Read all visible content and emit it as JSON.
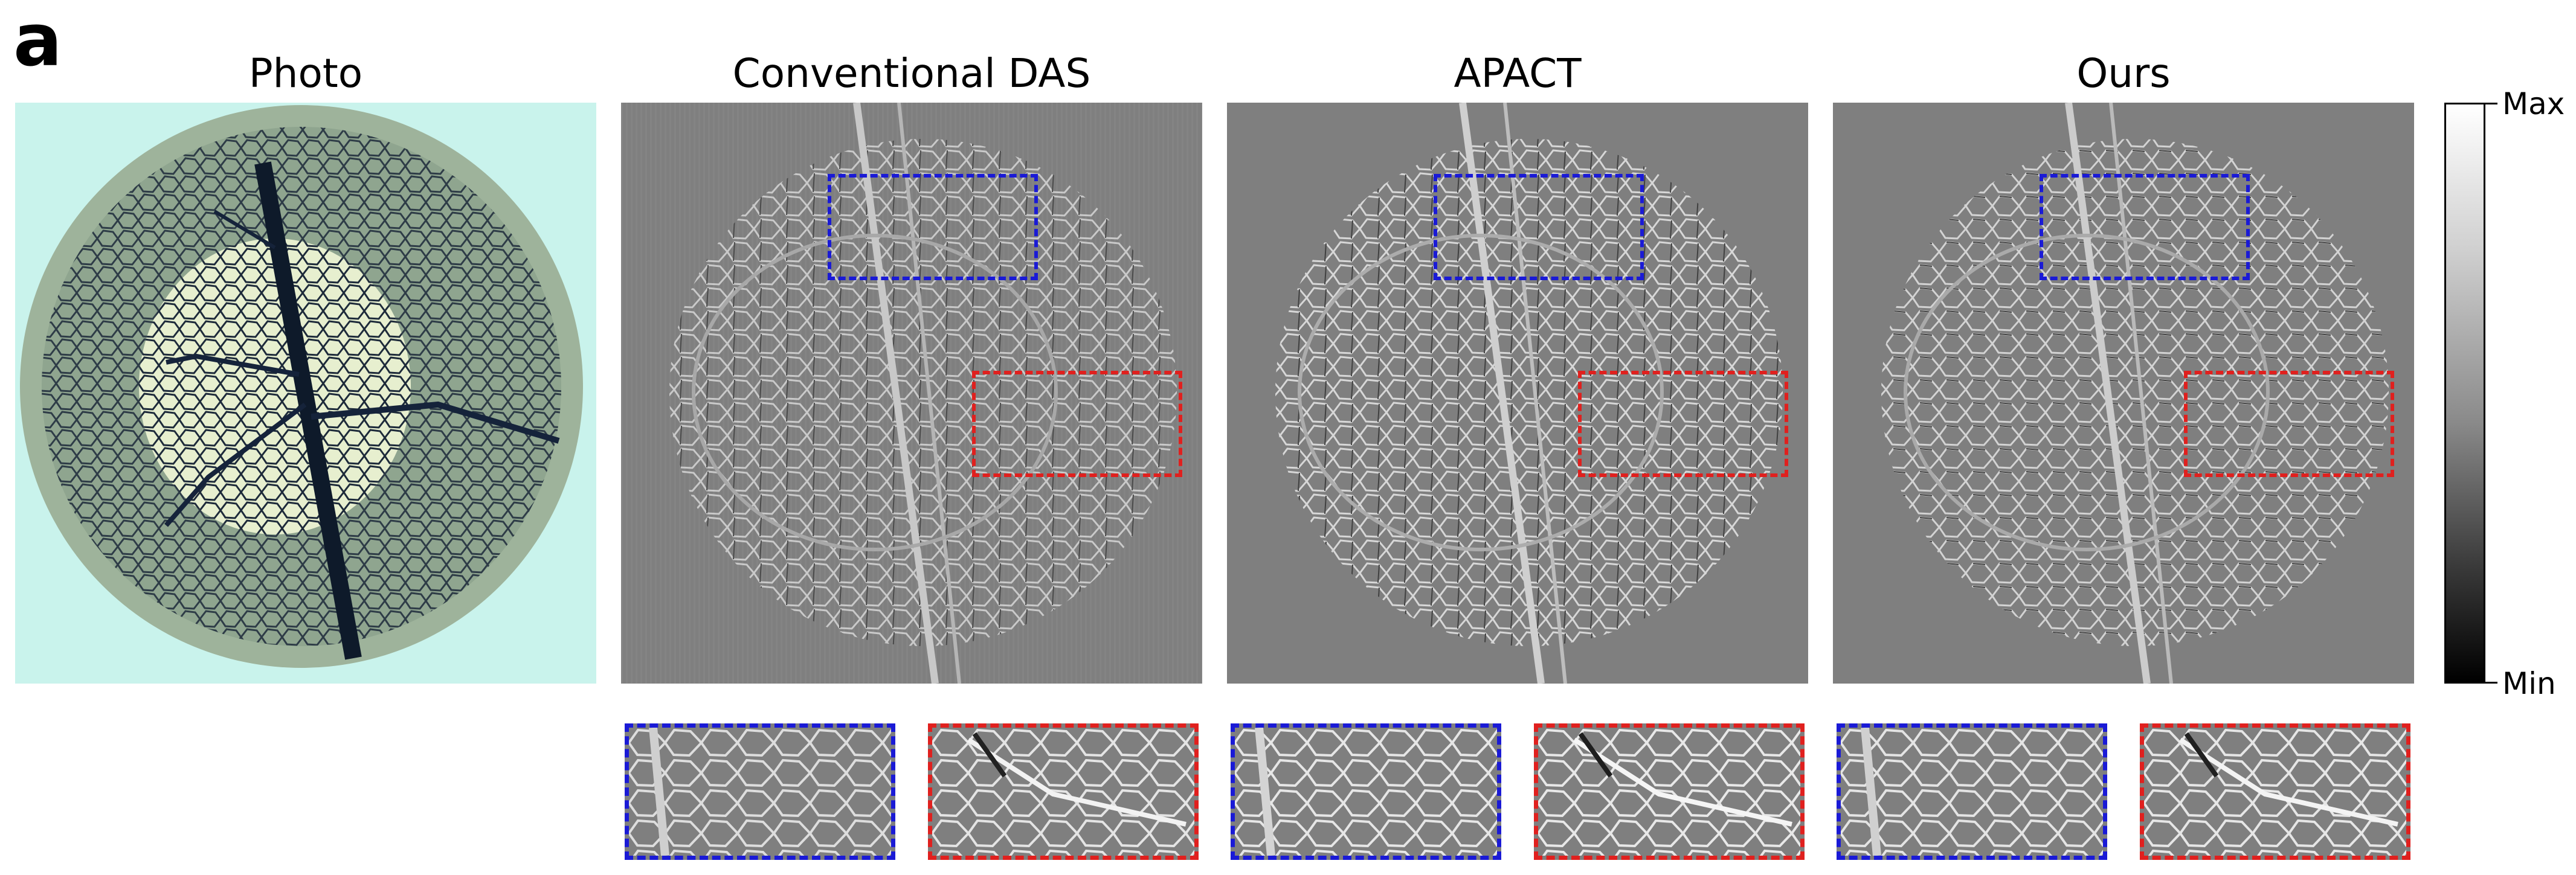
{
  "panel_label": "a",
  "columns": [
    {
      "title": "Photo"
    },
    {
      "title": "Conventional DAS"
    },
    {
      "title": "APACT"
    },
    {
      "title": "Ours"
    }
  ],
  "colorbar": {
    "max_label": "Max",
    "min_label": "Min"
  },
  "colors": {
    "blue_box": "#1a1ad6",
    "red_box": "#e0201e",
    "photo_bg": "#c9f3ec",
    "recon_bg": "#7f7f7f"
  }
}
